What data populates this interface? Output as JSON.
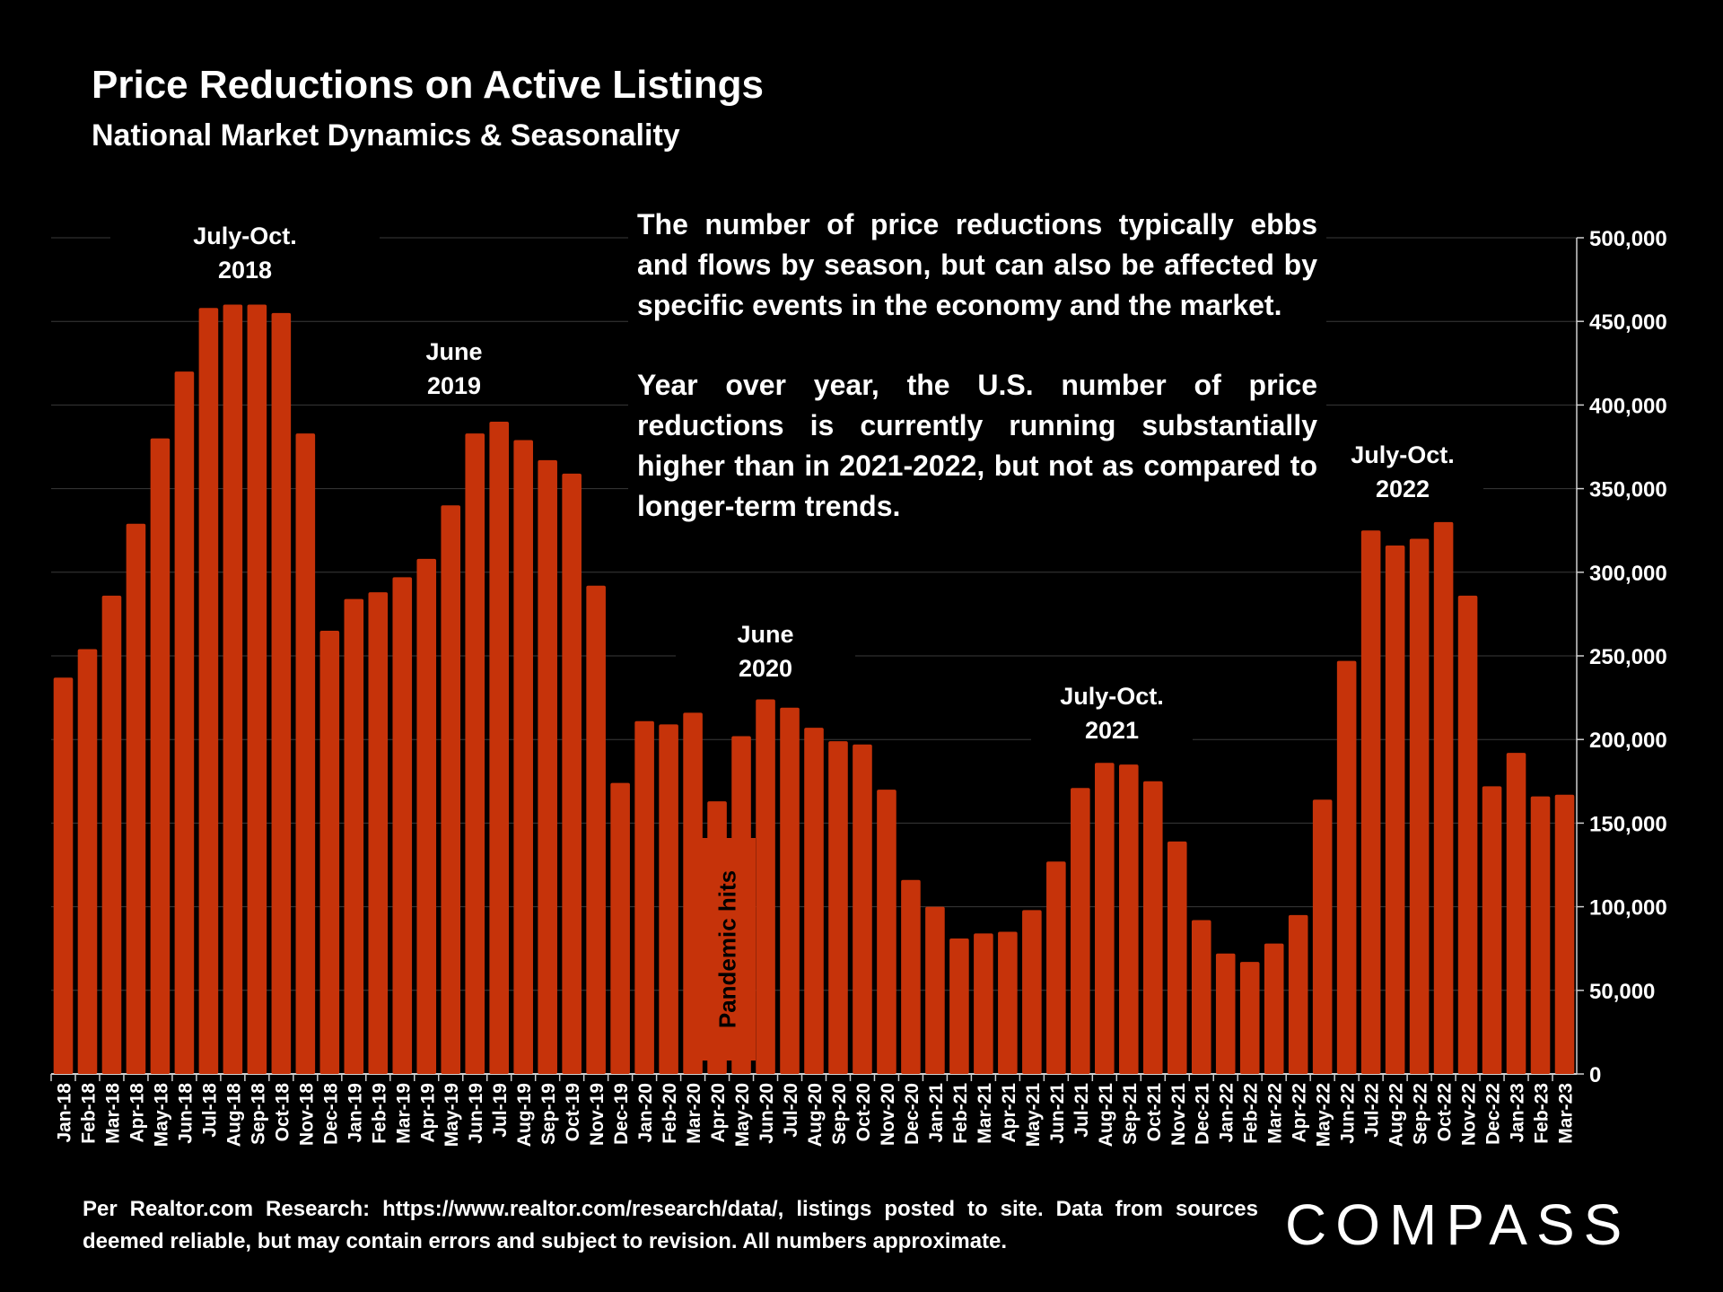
{
  "title": "Price Reductions on Active Listings",
  "subtitle": "National Market Dynamics & Seasonality",
  "description": [
    "The number of price reductions typically ebbs and flows by season, but can also be affected by specific events in the economy and the market.",
    "Year over year, the U.S. number of price reductions is currently running substantially higher than in 2021-2022, but not as compared to longer-term trends."
  ],
  "annotations": {
    "a2018": [
      "July-Oct.",
      "2018"
    ],
    "a2019": [
      "June",
      "2019"
    ],
    "a2020": [
      "June",
      "2020"
    ],
    "a2021": [
      "July-Oct.",
      "2021"
    ],
    "a2022": [
      "July-Oct.",
      "2022"
    ],
    "pandemic": "Pandemic hits"
  },
  "footer": "Per Realtor.com Research: https://www.realtor.com/research/data/, listings posted to site. Data from sources deemed reliable, but may contain errors and subject to revision. All numbers approximate.",
  "logo": "COMPASS",
  "colors": {
    "bar": "#c6330a",
    "grid": "#3a3a3a",
    "background": "#000000",
    "text": "#ffffff"
  },
  "chart_data": {
    "type": "bar",
    "title": "Price Reductions on Active Listings",
    "subtitle": "National Market Dynamics & Seasonality",
    "xlabel": "",
    "ylabel": "",
    "ylim": [
      0,
      500000
    ],
    "y_axis_position": "right",
    "grid": true,
    "yticks": [
      "0",
      "50,000",
      "100,000",
      "150,000",
      "200,000",
      "250,000",
      "300,000",
      "350,000",
      "400,000",
      "450,000",
      "500,000"
    ],
    "categories": [
      "Jan-18",
      "Feb-18",
      "Mar-18",
      "Apr-18",
      "May-18",
      "Jun-18",
      "Jul-18",
      "Aug-18",
      "Sep-18",
      "Oct-18",
      "Nov-18",
      "Dec-18",
      "Jan-19",
      "Feb-19",
      "Mar-19",
      "Apr-19",
      "May-19",
      "Jun-19",
      "Jul-19",
      "Aug-19",
      "Sep-19",
      "Oct-19",
      "Nov-19",
      "Dec-19",
      "Jan-20",
      "Feb-20",
      "Mar-20",
      "Apr-20",
      "May-20",
      "Jun-20",
      "Jul-20",
      "Aug-20",
      "Sep-20",
      "Oct-20",
      "Nov-20",
      "Dec-20",
      "Jan-21",
      "Feb-21",
      "Mar-21",
      "Apr-21",
      "May-21",
      "Jun-21",
      "Jul-21",
      "Aug-21",
      "Sep-21",
      "Oct-21",
      "Nov-21",
      "Dec-21",
      "Jan-22",
      "Feb-22",
      "Mar-22",
      "Apr-22",
      "May-22",
      "Jun-22",
      "Jul-22",
      "Aug-22",
      "Sep-22",
      "Oct-22",
      "Nov-22",
      "Dec-22",
      "Jan-23",
      "Feb-23",
      "Mar-23"
    ],
    "values": [
      237000,
      254000,
      286000,
      329000,
      380000,
      420000,
      458000,
      460000,
      460000,
      455000,
      383000,
      265000,
      284000,
      288000,
      297000,
      308000,
      340000,
      383000,
      390000,
      379000,
      367000,
      359000,
      292000,
      174000,
      211000,
      209000,
      216000,
      163000,
      202000,
      224000,
      219000,
      207000,
      199000,
      197000,
      170000,
      116000,
      100000,
      81000,
      84000,
      85000,
      98000,
      127000,
      171000,
      186000,
      185000,
      175000,
      139000,
      92000,
      72000,
      67000,
      78000,
      95000,
      164000,
      247000,
      325000,
      316000,
      320000,
      330000,
      286000,
      172000,
      192000,
      166000,
      167000
    ]
  }
}
